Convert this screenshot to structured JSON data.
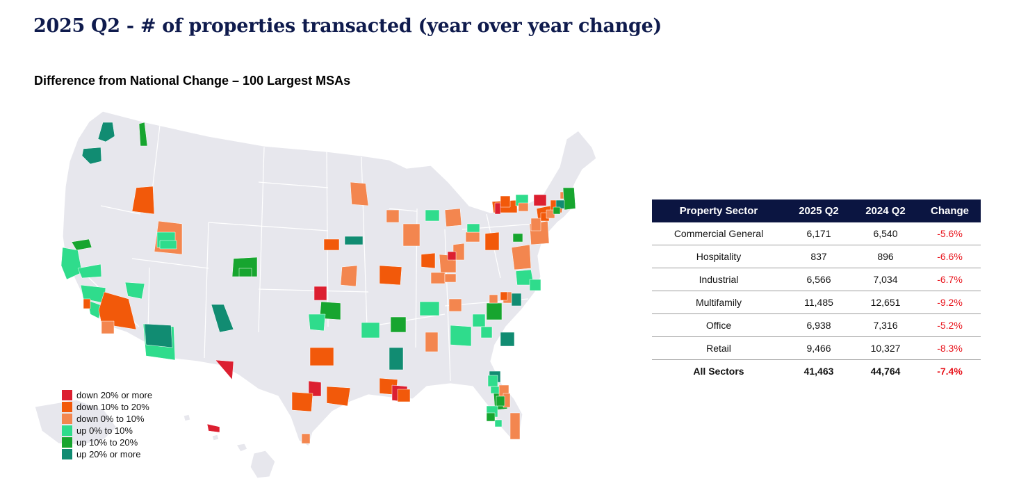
{
  "header": {
    "title": "2025 Q2 - # of properties transacted (year over year change)",
    "subtitle": "Difference from National Change – 100 Largest MSAs"
  },
  "colors": {
    "down_20_plus": "#dc1f30",
    "down_10_20": "#f2590a",
    "down_0_10": "#f3864f",
    "up_0_10": "#2fdc8c",
    "up_10_20": "#17a52f",
    "up_20_plus": "#118c72",
    "land": "#e7e7ed",
    "table_header_bg": "#0b1541",
    "negative_change": "#e8141c"
  },
  "legend": {
    "items": [
      {
        "label": "down 20% or more",
        "color": "#dc1f30"
      },
      {
        "label": "down 10% to 20%",
        "color": "#f2590a"
      },
      {
        "label": "down 0% to 10%",
        "color": "#f3864f"
      },
      {
        "label": "up 0% to 10%",
        "color": "#2fdc8c"
      },
      {
        "label": "up 10% to 20%",
        "color": "#17a52f"
      },
      {
        "label": "up 20% or more",
        "color": "#118c72"
      }
    ]
  },
  "table": {
    "columns": [
      "Property Sector",
      "2025 Q2",
      "2024 Q2",
      "Change"
    ],
    "rows": [
      {
        "sector": "Commercial General",
        "q2_2025": "6,171",
        "q2_2024": "6,540",
        "change": "-5.6%"
      },
      {
        "sector": "Hospitality",
        "q2_2025": "837",
        "q2_2024": "896",
        "change": "-6.6%"
      },
      {
        "sector": "Industrial",
        "q2_2025": "6,566",
        "q2_2024": "7,034",
        "change": "-6.7%"
      },
      {
        "sector": "Multifamily",
        "q2_2025": "11,485",
        "q2_2024": "12,651",
        "change": "-9.2%"
      },
      {
        "sector": "Office",
        "q2_2025": "6,938",
        "q2_2024": "7,316",
        "change": "-5.2%"
      },
      {
        "sector": "Retail",
        "q2_2025": "9,466",
        "q2_2024": "10,327",
        "change": "-8.3%"
      }
    ],
    "total": {
      "sector": "All Sectors",
      "q2_2025": "41,463",
      "q2_2024": "44,764",
      "change": "-7.4%"
    }
  },
  "map": {
    "msas": [
      {
        "category": "up_20_plus"
      },
      {
        "category": "up_20_plus"
      },
      {
        "category": "up_10_20"
      },
      {
        "category": "down_10_20"
      },
      {
        "category": "down_0_10"
      },
      {
        "category": "up_0_10"
      },
      {
        "category": "down_0_10"
      },
      {
        "category": "up_10_20"
      },
      {
        "category": "up_0_10"
      },
      {
        "category": "up_0_10"
      },
      {
        "category": "up_0_10"
      },
      {
        "category": "up_0_10"
      },
      {
        "category": "up_0_10"
      },
      {
        "category": "down_10_20"
      },
      {
        "category": "down_10_20"
      },
      {
        "category": "down_0_10"
      },
      {
        "category": "up_0_10"
      },
      {
        "category": "up_20_plus"
      },
      {
        "category": "up_10_20"
      },
      {
        "category": "up_20_plus"
      },
      {
        "category": "down_20_plus"
      },
      {
        "category": "down_0_10"
      },
      {
        "category": "down_0_10"
      },
      {
        "category": "down_10_20"
      },
      {
        "category": "up_20_plus"
      },
      {
        "category": "down_20_plus"
      },
      {
        "category": "up_10_20"
      },
      {
        "category": "up_0_10"
      },
      {
        "category": "down_10_20"
      },
      {
        "category": "down_0_10"
      },
      {
        "category": "down_10_20"
      },
      {
        "category": "down_20_plus"
      },
      {
        "category": "down_10_20"
      },
      {
        "category": "down_0_10"
      },
      {
        "category": "down_0_10"
      },
      {
        "category": "down_10_20"
      },
      {
        "category": "up_0_10"
      },
      {
        "category": "up_10_20"
      },
      {
        "category": "up_0_10"
      },
      {
        "category": "up_20_plus"
      },
      {
        "category": "down_10_20"
      },
      {
        "category": "down_20_plus"
      },
      {
        "category": "down_10_20"
      },
      {
        "category": "down_0_10"
      },
      {
        "category": "down_0_10"
      },
      {
        "category": "down_0_10"
      },
      {
        "category": "down_0_10"
      },
      {
        "category": "down_10_20"
      },
      {
        "category": "down_0_10"
      },
      {
        "category": "up_0_10"
      },
      {
        "category": "down_0_10"
      },
      {
        "category": "down_10_20"
      },
      {
        "category": "down_20_plus"
      },
      {
        "category": "down_0_10"
      },
      {
        "category": "down_0_10"
      },
      {
        "category": "up_0_10"
      },
      {
        "category": "down_10_20"
      },
      {
        "category": "up_0_10"
      },
      {
        "category": "up_0_10"
      },
      {
        "category": "down_0_10"
      },
      {
        "category": "up_10_20"
      },
      {
        "category": "up_0_10"
      },
      {
        "category": "up_20_plus"
      },
      {
        "category": "down_0_10"
      },
      {
        "category": "up_0_10"
      },
      {
        "category": "up_0_10"
      },
      {
        "category": "up_0_10"
      },
      {
        "category": "up_10_20"
      },
      {
        "category": "up_20_plus"
      },
      {
        "category": "down_0_10"
      },
      {
        "category": "down_0_10"
      },
      {
        "category": "down_10_20"
      },
      {
        "category": "down_20_plus"
      },
      {
        "category": "down_10_20"
      },
      {
        "category": "down_0_10"
      },
      {
        "category": "down_20_plus"
      },
      {
        "category": "down_10_20"
      },
      {
        "category": "down_10_20"
      },
      {
        "category": "down_0_10"
      },
      {
        "category": "down_0_10"
      },
      {
        "category": "down_0_10"
      },
      {
        "category": "down_10_20"
      },
      {
        "category": "up_10_20"
      },
      {
        "category": "up_20_plus"
      },
      {
        "category": "up_10_20"
      },
      {
        "category": "up_10_20"
      },
      {
        "category": "up_20_plus"
      },
      {
        "category": "up_0_10"
      },
      {
        "category": "up_0_10"
      },
      {
        "category": "down_0_10"
      },
      {
        "category": "down_0_10"
      },
      {
        "category": "down_0_10"
      },
      {
        "category": "up_10_20"
      },
      {
        "category": "up_0_10"
      },
      {
        "category": "up_0_10"
      },
      {
        "category": "down_20_plus"
      },
      {
        "category": "up_10_20"
      },
      {
        "category": "up_0_10"
      },
      {
        "category": "up_10_20"
      },
      {
        "category": "down_0_10"
      }
    ]
  }
}
